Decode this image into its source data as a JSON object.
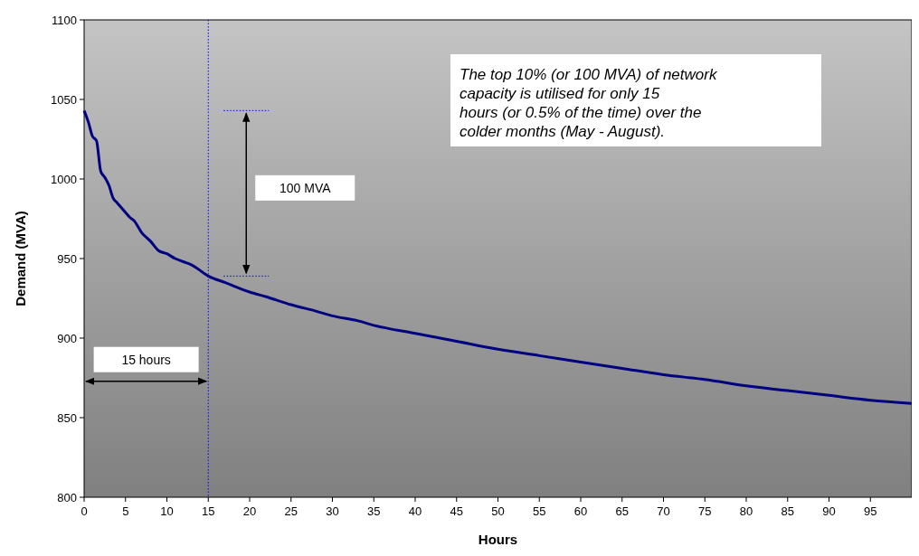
{
  "chart_data": {
    "type": "line",
    "xlabel": "Hours",
    "ylabel": "Demand (MVA)",
    "xlim": [
      0,
      100
    ],
    "xticks": [
      0,
      5,
      10,
      15,
      20,
      25,
      30,
      35,
      40,
      45,
      50,
      55,
      60,
      65,
      70,
      75,
      80,
      85,
      90,
      95
    ],
    "ylim": [
      800,
      1100
    ],
    "yticks": [
      800,
      850,
      900,
      950,
      1000,
      1050,
      1100
    ],
    "series": [
      {
        "color": "#000080",
        "x": [
          0,
          0.5,
          1,
          1.5,
          2,
          2.5,
          3,
          3.5,
          4,
          5,
          5.5,
          6,
          7,
          8,
          9,
          10,
          11,
          12,
          13,
          15,
          17,
          20,
          22,
          25,
          28,
          30,
          33,
          35,
          40,
          45,
          50,
          55,
          60,
          65,
          70,
          75,
          80,
          85,
          90,
          95,
          100
        ],
        "values": [
          1043,
          1036,
          1027,
          1024,
          1005,
          1001,
          996,
          988,
          985,
          979,
          976,
          974,
          966,
          961,
          955,
          953,
          950,
          948,
          946,
          939,
          935,
          929,
          926,
          921,
          917,
          914,
          911,
          908,
          903,
          898,
          893,
          889,
          885,
          881,
          877,
          874,
          870,
          867,
          864,
          861,
          859
        ]
      }
    ],
    "ref_lines": [
      {
        "axis": "x",
        "value": 15,
        "color": "#0000ff",
        "line_style": "dotted"
      }
    ],
    "annotations": [
      "100 MVA",
      "15 hours",
      "The top 10% (or 100 MVA) of network capacity is utilised for only 15 hours (or 0.5% of the time) over the colder months (May - August)."
    ]
  }
}
